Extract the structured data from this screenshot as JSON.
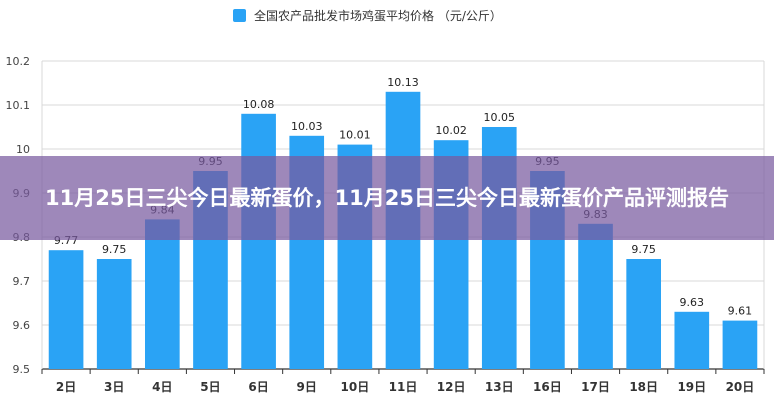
{
  "chart_data": {
    "type": "bar",
    "title": "",
    "legend": {
      "label": "全国农产品批发市场鸡蛋平均价格 （元/公斤）",
      "position": "top-center",
      "color": "#2AA3F5"
    },
    "categories": [
      "2日",
      "3日",
      "4日",
      "5日",
      "6日",
      "9日",
      "10日",
      "11日",
      "12日",
      "13日",
      "16日",
      "17日",
      "18日",
      "19日",
      "20日"
    ],
    "series": [
      {
        "name": "全国农产品批发市场鸡蛋平均价格 （元/公斤）",
        "values": [
          9.77,
          9.75,
          9.84,
          9.95,
          10.08,
          10.03,
          10.01,
          10.13,
          10.02,
          10.05,
          9.95,
          9.83,
          9.75,
          9.63,
          9.61
        ],
        "color": "#2AA3F5"
      }
    ],
    "data_labels": [
      "9.77",
      "9.75",
      "9.84",
      "9.95",
      "10.08",
      "10.03",
      "10.01",
      "10.13",
      "10.02",
      "10.05",
      "9.95",
      "9.83",
      "9.75",
      "9.63",
      "9.61"
    ],
    "ylim": [
      9.5,
      10.2
    ],
    "yticks": [
      "9.5",
      "9.6",
      "9.7",
      "9.8",
      "9.9",
      "10",
      "10.1",
      "10.2"
    ],
    "ytick_values": [
      9.5,
      9.6,
      9.7,
      9.8,
      9.9,
      10.0,
      10.1,
      10.2
    ],
    "grid": true,
    "xlabel": "",
    "ylabel": ""
  },
  "overlay": {
    "title": "11月25日三尖今日最新蛋价，11月25日三尖今日最新蛋价产品评测报告"
  }
}
